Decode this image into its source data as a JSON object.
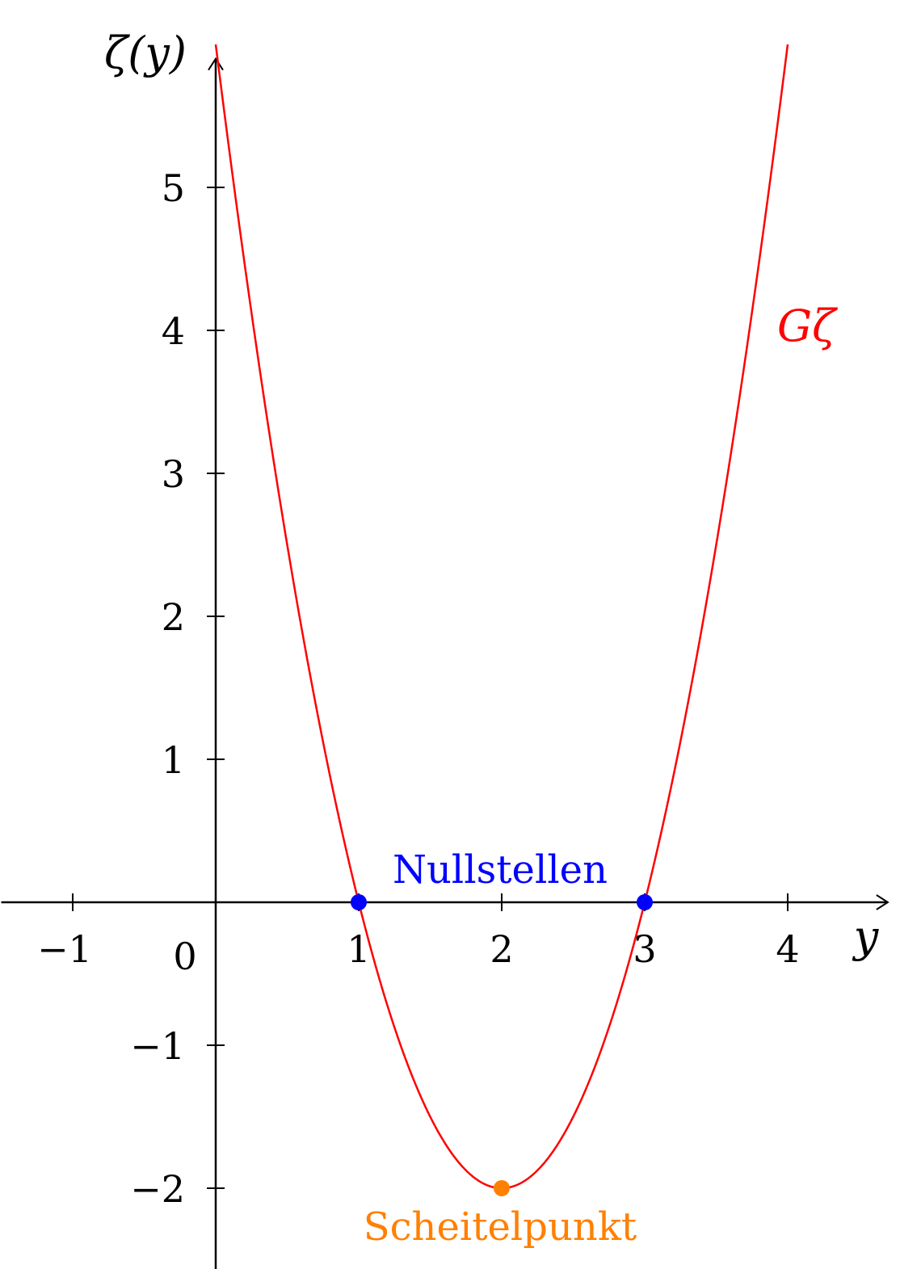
{
  "chart_data": {
    "type": "line",
    "function": "ζ(y) = 2(y−2)² − 2 = 2y² − 8y + 6",
    "xlabel": "y",
    "ylabel": "ζ(y)",
    "xlim": [
      -1.5,
      4.7
    ],
    "ylim": [
      -2.6,
      5.9
    ],
    "x_ticks": [
      -1,
      1,
      2,
      3,
      4
    ],
    "x_tick_labels": [
      "−1",
      "1",
      "2",
      "3",
      "4"
    ],
    "y_ticks": [
      -2,
      -1,
      1,
      2,
      3,
      4,
      5
    ],
    "y_tick_labels": [
      "−2",
      "−1",
      "1",
      "2",
      "3",
      "4",
      "5"
    ],
    "origin_label": "0",
    "grid": false,
    "series": [
      {
        "name": "Gζ",
        "color": "#ff0000",
        "coefficients": [
          2,
          -8,
          6
        ],
        "x_range": [
          0,
          4
        ]
      }
    ],
    "points": [
      {
        "group": "Nullstellen",
        "x": 1,
        "y": 0,
        "color": "#0000ff"
      },
      {
        "group": "Nullstellen",
        "x": 3,
        "y": 0,
        "color": "#0000ff"
      },
      {
        "group": "Scheitelpunkt",
        "x": 2,
        "y": -2,
        "color": "#ff8000"
      }
    ],
    "annotations": {
      "zeros": {
        "text": "Nullstellen",
        "color": "#0000ff"
      },
      "vertex": {
        "text": "Scheitelpunkt",
        "color": "#ff8000"
      },
      "curve": {
        "text": "Gζ",
        "color": "#ff0000"
      }
    }
  }
}
